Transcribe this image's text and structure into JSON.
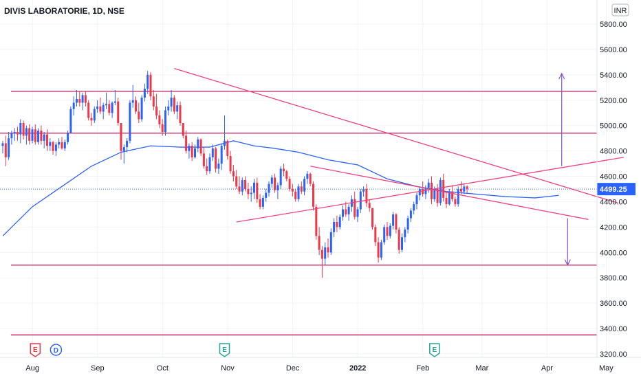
{
  "chart_data": {
    "type": "candlestick",
    "title": "DIVIS LABORATORIE, 1D, NSE",
    "currency": "INR",
    "current_price": "4499.25",
    "ylim": [
      3200,
      5900
    ],
    "y_ticks": [
      "5800.00",
      "5600.00",
      "5400.00",
      "5200.00",
      "5000.00",
      "4800.00",
      "4600.00",
      "4400.00",
      "4200.00",
      "4000.00",
      "3800.00",
      "3600.00",
      "3400.00",
      "3200.00"
    ],
    "x_ticks": [
      "Aug",
      "Sep",
      "Oct",
      "Nov",
      "Dec",
      "2022",
      "Feb",
      "Mar",
      "Apr",
      "May"
    ],
    "x_tick_index": [
      4,
      26,
      48,
      70,
      92,
      114,
      136,
      156,
      178,
      198
    ],
    "colors": {
      "up": "#2962ff",
      "down": "#f23645",
      "ma": "#2962ff",
      "trendline": "#f0427a",
      "hline": "#c2185b",
      "arrow": "#7e57c2",
      "price_label_bg": "#2962ff"
    },
    "horizontal_levels": [
      5270,
      4940,
      3900,
      3350
    ],
    "trendlines": [
      {
        "from": [
          58,
          5450
        ],
        "to": [
          208,
          4390
        ]
      },
      {
        "from": [
          104,
          4680
        ],
        "to": [
          198,
          4260
        ]
      },
      {
        "from": [
          79,
          4240
        ],
        "to": [
          210,
          4750
        ]
      }
    ],
    "arrows": [
      {
        "x": 189,
        "from": 4680,
        "to": 5410,
        "direction": "up"
      },
      {
        "x": 191,
        "from": 4270,
        "to": 3900,
        "direction": "down"
      }
    ],
    "events": [
      {
        "label": "E",
        "x": 11,
        "kind": "earnings-past"
      },
      {
        "label": "D",
        "x": 18,
        "kind": "dividend"
      },
      {
        "label": "E",
        "x": 75,
        "kind": "earnings"
      },
      {
        "label": "E",
        "x": 146,
        "kind": "earnings"
      }
    ],
    "moving_average": [
      [
        0,
        4130
      ],
      [
        10,
        4360
      ],
      [
        20,
        4520
      ],
      [
        30,
        4680
      ],
      [
        40,
        4790
      ],
      [
        50,
        4840
      ],
      [
        60,
        4830
      ],
      [
        70,
        4830
      ],
      [
        78,
        4880
      ],
      [
        85,
        4840
      ],
      [
        92,
        4820
      ],
      [
        100,
        4790
      ],
      [
        110,
        4730
      ],
      [
        120,
        4690
      ],
      [
        130,
        4580
      ],
      [
        140,
        4520
      ],
      [
        150,
        4480
      ],
      [
        160,
        4460
      ],
      [
        170,
        4440
      ],
      [
        180,
        4430
      ],
      [
        188,
        4450
      ]
    ],
    "candles": [
      [
        4840,
        4880,
        4780,
        4860
      ],
      [
        4860,
        4920,
        4680,
        4750
      ],
      [
        4750,
        4950,
        4730,
        4900
      ],
      [
        4900,
        4960,
        4850,
        4940
      ],
      [
        4940,
        4980,
        4880,
        4950
      ],
      [
        4950,
        4990,
        4880,
        4930
      ],
      [
        4930,
        5050,
        4860,
        5020
      ],
      [
        5020,
        5040,
        4890,
        4920
      ],
      [
        4920,
        5000,
        4850,
        4980
      ],
      [
        4980,
        5010,
        4850,
        4880
      ],
      [
        4880,
        4990,
        4860,
        4970
      ],
      [
        4970,
        5010,
        4850,
        4870
      ],
      [
        4870,
        4980,
        4850,
        4960
      ],
      [
        4960,
        5000,
        4850,
        4880
      ],
      [
        4880,
        4950,
        4820,
        4930
      ],
      [
        4930,
        4970,
        4800,
        4840
      ],
      [
        4840,
        4900,
        4800,
        4870
      ],
      [
        4870,
        4880,
        4770,
        4800
      ],
      [
        4800,
        4870,
        4760,
        4850
      ],
      [
        4850,
        4900,
        4820,
        4870
      ],
      [
        4870,
        4910,
        4810,
        4820
      ],
      [
        4820,
        4890,
        4800,
        4870
      ],
      [
        4870,
        4960,
        4850,
        4940
      ],
      [
        4940,
        5150,
        4940,
        5130
      ],
      [
        5130,
        5230,
        5080,
        5180
      ],
      [
        5180,
        5280,
        5150,
        5210
      ],
      [
        5210,
        5270,
        5150,
        5180
      ],
      [
        5180,
        5260,
        5120,
        5240
      ],
      [
        5240,
        5270,
        5150,
        5180
      ],
      [
        5180,
        5200,
        5040,
        5060
      ],
      [
        5060,
        5100,
        5000,
        5040
      ],
      [
        5040,
        5150,
        5020,
        5130
      ],
      [
        5130,
        5200,
        5100,
        5150
      ],
      [
        5150,
        5220,
        5090,
        5110
      ],
      [
        5110,
        5180,
        5050,
        5160
      ],
      [
        5160,
        5260,
        5130,
        5170
      ],
      [
        5170,
        5200,
        5080,
        5100
      ],
      [
        5100,
        5190,
        5060,
        5180
      ],
      [
        5180,
        5280,
        5160,
        5190
      ],
      [
        5190,
        5220,
        5000,
        5020
      ],
      [
        5020,
        5020,
        4730,
        4800
      ],
      [
        4800,
        4850,
        4700,
        4830
      ],
      [
        4830,
        4900,
        4790,
        4880
      ],
      [
        4880,
        5200,
        4860,
        5180
      ],
      [
        5180,
        5320,
        5140,
        5200
      ],
      [
        5200,
        5230,
        5090,
        5110
      ],
      [
        5110,
        5180,
        5020,
        5050
      ],
      [
        5050,
        5240,
        5030,
        5220
      ],
      [
        5220,
        5330,
        5190,
        5290
      ],
      [
        5290,
        5430,
        5250,
        5400
      ],
      [
        5400,
        5420,
        5200,
        5230
      ],
      [
        5230,
        5280,
        5120,
        5150
      ],
      [
        5150,
        5250,
        5050,
        5080
      ],
      [
        5080,
        5120,
        4980,
        5010
      ],
      [
        5010,
        5050,
        4920,
        4950
      ],
      [
        4950,
        5150,
        4920,
        5120
      ],
      [
        5120,
        5200,
        5080,
        5150
      ],
      [
        5150,
        5280,
        5110,
        5220
      ],
      [
        5220,
        5240,
        5090,
        5110
      ],
      [
        5110,
        5190,
        5050,
        5160
      ],
      [
        5160,
        5190,
        5000,
        5020
      ],
      [
        5020,
        5010,
        4900,
        4920
      ],
      [
        4920,
        4960,
        4780,
        4800
      ],
      [
        4800,
        4860,
        4740,
        4840
      ],
      [
        4840,
        4870,
        4720,
        4750
      ],
      [
        4750,
        4850,
        4740,
        4820
      ],
      [
        4820,
        4910,
        4790,
        4890
      ],
      [
        4890,
        4900,
        4760,
        4780
      ],
      [
        4780,
        4830,
        4660,
        4680
      ],
      [
        4680,
        4740,
        4610,
        4640
      ],
      [
        4640,
        4780,
        4620,
        4750
      ],
      [
        4750,
        4850,
        4720,
        4820
      ],
      [
        4820,
        4830,
        4630,
        4660
      ],
      [
        4660,
        4740,
        4620,
        4700
      ],
      [
        4700,
        4860,
        4650,
        4840
      ],
      [
        4840,
        5080,
        4810,
        4880
      ],
      [
        4880,
        4890,
        4730,
        4760
      ],
      [
        4760,
        4800,
        4620,
        4640
      ],
      [
        4640,
        4690,
        4560,
        4600
      ],
      [
        4600,
        4650,
        4500,
        4520
      ],
      [
        4520,
        4600,
        4460,
        4480
      ],
      [
        4480,
        4590,
        4450,
        4570
      ],
      [
        4570,
        4600,
        4480,
        4500
      ],
      [
        4500,
        4550,
        4420,
        4460
      ],
      [
        4460,
        4520,
        4400,
        4470
      ],
      [
        4470,
        4580,
        4420,
        4550
      ],
      [
        4550,
        4590,
        4390,
        4420
      ],
      [
        4420,
        4460,
        4340,
        4360
      ],
      [
        4360,
        4450,
        4340,
        4430
      ],
      [
        4430,
        4500,
        4400,
        4470
      ],
      [
        4470,
        4560,
        4440,
        4540
      ],
      [
        4540,
        4610,
        4510,
        4590
      ],
      [
        4590,
        4620,
        4470,
        4490
      ],
      [
        4490,
        4550,
        4420,
        4530
      ],
      [
        4530,
        4680,
        4500,
        4660
      ],
      [
        4660,
        4700,
        4600,
        4640
      ],
      [
        4640,
        4650,
        4560,
        4580
      ],
      [
        4580,
        4600,
        4480,
        4500
      ],
      [
        4500,
        4540,
        4440,
        4480
      ],
      [
        4480,
        4500,
        4400,
        4420
      ],
      [
        4420,
        4540,
        4400,
        4520
      ],
      [
        4520,
        4560,
        4460,
        4480
      ],
      [
        4480,
        4600,
        4450,
        4580
      ],
      [
        4580,
        4640,
        4540,
        4620
      ],
      [
        4620,
        4630,
        4520,
        4540
      ],
      [
        4540,
        4560,
        4330,
        4360
      ],
      [
        4360,
        4380,
        4100,
        4130
      ],
      [
        4130,
        4200,
        3980,
        4020
      ],
      [
        4020,
        4050,
        3800,
        3950
      ],
      [
        3950,
        4080,
        3900,
        4040
      ],
      [
        4040,
        4110,
        3960,
        4000
      ],
      [
        4000,
        4190,
        3980,
        4160
      ],
      [
        4160,
        4270,
        4120,
        4240
      ],
      [
        4240,
        4290,
        4160,
        4200
      ],
      [
        4200,
        4300,
        4180,
        4280
      ],
      [
        4280,
        4370,
        4250,
        4340
      ],
      [
        4340,
        4400,
        4280,
        4300
      ],
      [
        4300,
        4380,
        4250,
        4360
      ],
      [
        4360,
        4450,
        4320,
        4420
      ],
      [
        4420,
        4480,
        4260,
        4280
      ],
      [
        4280,
        4360,
        4240,
        4340
      ],
      [
        4340,
        4500,
        4310,
        4480
      ],
      [
        4480,
        4520,
        4440,
        4500
      ],
      [
        4500,
        4540,
        4360,
        4390
      ],
      [
        4390,
        4420,
        4320,
        4350
      ],
      [
        4350,
        4330,
        4180,
        4200
      ],
      [
        4200,
        4220,
        4050,
        4080
      ],
      [
        4080,
        4120,
        3920,
        3960
      ],
      [
        3960,
        4100,
        3940,
        4080
      ],
      [
        4080,
        4220,
        4060,
        4200
      ],
      [
        4200,
        4240,
        4100,
        4130
      ],
      [
        4130,
        4230,
        4110,
        4210
      ],
      [
        4210,
        4320,
        4180,
        4300
      ],
      [
        4300,
        4310,
        4150,
        4180
      ],
      [
        4180,
        4200,
        3990,
        4020
      ],
      [
        4020,
        4150,
        4000,
        4120
      ],
      [
        4120,
        4200,
        4080,
        4180
      ],
      [
        4180,
        4290,
        4150,
        4270
      ],
      [
        4270,
        4350,
        4240,
        4330
      ],
      [
        4330,
        4400,
        4300,
        4380
      ],
      [
        4380,
        4470,
        4340,
        4450
      ],
      [
        4450,
        4520,
        4410,
        4500
      ],
      [
        4500,
        4560,
        4440,
        4460
      ],
      [
        4460,
        4530,
        4420,
        4510
      ],
      [
        4510,
        4580,
        4470,
        4550
      ],
      [
        4550,
        4600,
        4380,
        4420
      ],
      [
        4420,
        4520,
        4400,
        4500
      ],
      [
        4500,
        4540,
        4360,
        4390
      ],
      [
        4390,
        4590,
        4370,
        4570
      ],
      [
        4570,
        4620,
        4400,
        4430
      ],
      [
        4430,
        4480,
        4350,
        4380
      ],
      [
        4380,
        4500,
        4370,
        4480
      ],
      [
        4480,
        4530,
        4400,
        4420
      ],
      [
        4420,
        4440,
        4360,
        4380
      ],
      [
        4380,
        4520,
        4360,
        4500
      ],
      [
        4500,
        4560,
        4460,
        4480
      ],
      [
        4480,
        4540,
        4460,
        4520
      ],
      [
        4520,
        4530,
        4470,
        4499.25
      ]
    ]
  }
}
